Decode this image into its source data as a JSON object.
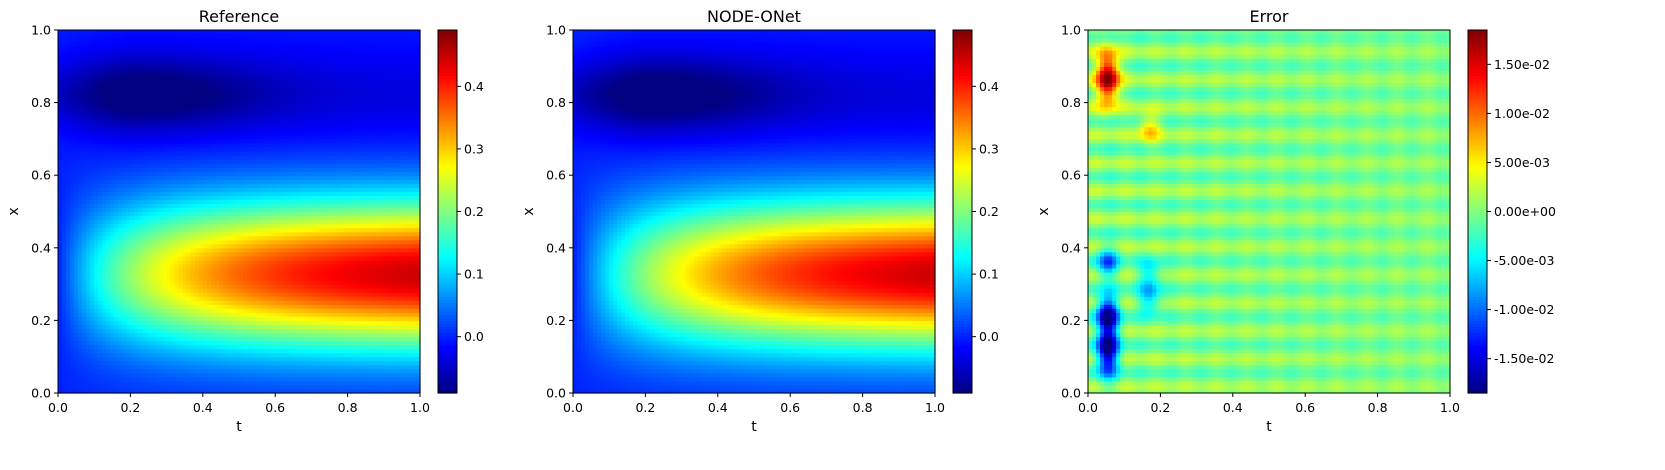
{
  "chart_data": [
    {
      "type": "heatmap",
      "title": "Reference",
      "xlabel": "t",
      "ylabel": "x",
      "xlim": [
        0,
        1
      ],
      "ylim": [
        0,
        1
      ],
      "x_ticks": [
        "0.0",
        "0.2",
        "0.4",
        "0.6",
        "0.8",
        "1.0"
      ],
      "y_ticks": [
        "0.0",
        "0.2",
        "0.4",
        "0.6",
        "0.8",
        "1.0"
      ],
      "colormap": "jet",
      "colorbar": {
        "min": -0.09,
        "max": 0.49,
        "ticks": [
          -0.0,
          0.1,
          0.2,
          0.3,
          0.4
        ],
        "tick_labels": [
          "0.0",
          "0.1",
          "0.2",
          "0.3",
          "0.4"
        ]
      },
      "field": "solution",
      "grid": false
    },
    {
      "type": "heatmap",
      "title": "NODE-ONet",
      "xlabel": "t",
      "ylabel": "x",
      "xlim": [
        0,
        1
      ],
      "ylim": [
        0,
        1
      ],
      "x_ticks": [
        "0.0",
        "0.2",
        "0.4",
        "0.6",
        "0.8",
        "1.0"
      ],
      "y_ticks": [
        "0.0",
        "0.2",
        "0.4",
        "0.6",
        "0.8",
        "1.0"
      ],
      "colormap": "jet",
      "colorbar": {
        "min": -0.09,
        "max": 0.49,
        "ticks": [
          -0.0,
          0.1,
          0.2,
          0.3,
          0.4
        ],
        "tick_labels": [
          "0.0",
          "0.1",
          "0.2",
          "0.3",
          "0.4"
        ]
      },
      "field": "solution",
      "grid": false
    },
    {
      "type": "heatmap",
      "title": "Error",
      "xlabel": "t",
      "ylabel": "x",
      "xlim": [
        0,
        1
      ],
      "ylim": [
        0,
        1
      ],
      "x_ticks": [
        "0.0",
        "0.2",
        "0.4",
        "0.6",
        "0.8",
        "1.0"
      ],
      "y_ticks": [
        "0.0",
        "0.2",
        "0.4",
        "0.6",
        "0.8",
        "1.0"
      ],
      "colormap": "jet",
      "colorbar": {
        "min": -0.0185,
        "max": 0.0185,
        "ticks": [
          -0.015,
          -0.01,
          -0.005,
          0.0,
          0.005,
          0.01,
          0.015
        ],
        "tick_labels": [
          "-1.50e-02",
          "-1.00e-02",
          "-5.00e-03",
          "0.00e+00",
          "5.00e-03",
          "1.00e-02",
          "1.50e-02"
        ]
      },
      "field": "error",
      "grid": false
    }
  ]
}
